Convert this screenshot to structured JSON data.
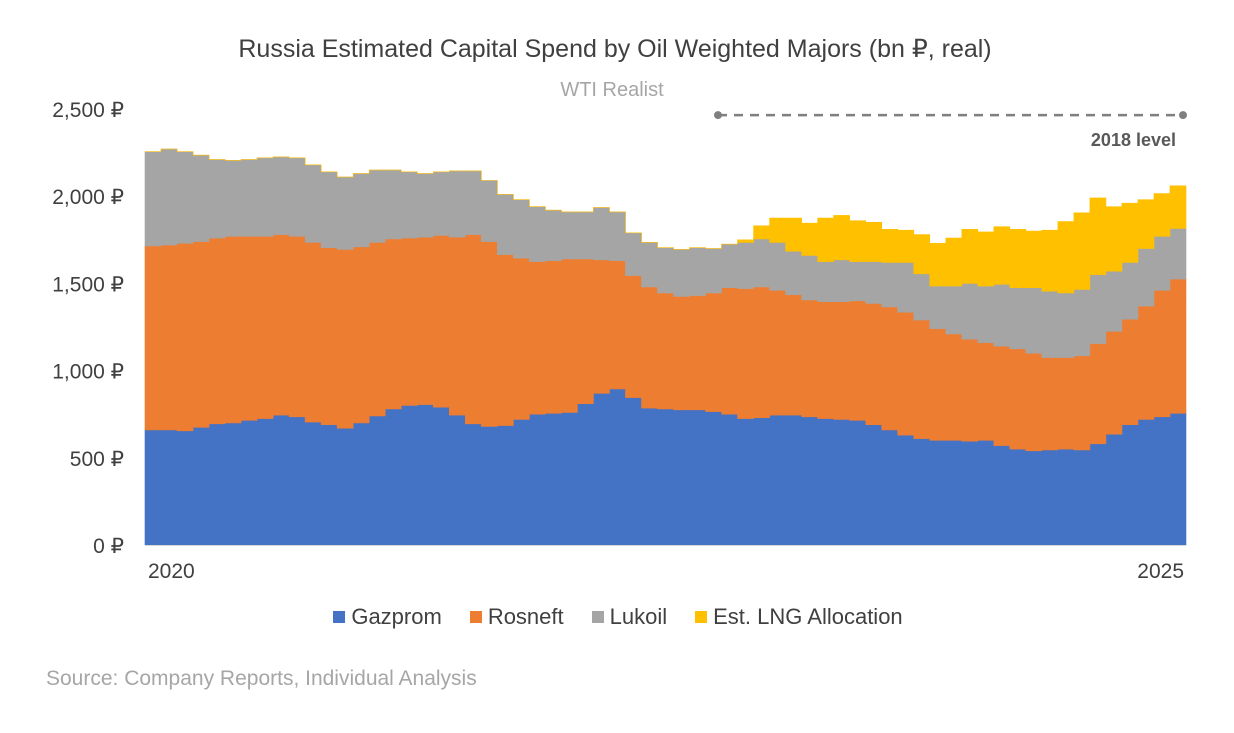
{
  "title": "Russia Estimated Capital Spend by Oil Weighted Majors (bn ₽, real)",
  "subtitle": "WTI Realist",
  "source": "Source: Company Reports, Individual Analysis",
  "colors": {
    "gazprom": "#4472c4",
    "rosneft": "#ed7d31",
    "lukoil": "#a5a5a5",
    "lng": "#ffc000",
    "text": "#404040",
    "reference": "#7f7f7f"
  },
  "chart_data": {
    "type": "area",
    "stacked": true,
    "step": true,
    "x_tick_labels": [
      "2020",
      "2025"
    ],
    "ylim": [
      0,
      2500
    ],
    "y_ticks": [
      0,
      500,
      1000,
      1500,
      2000,
      2500
    ],
    "y_tick_labels": [
      "0 ₽",
      "500 ₽",
      "1,000 ₽",
      "1,500 ₽",
      "2,000 ₽",
      "2,500 ₽"
    ],
    "grid": false,
    "legend_position": "bottom",
    "series": [
      {
        "name": "Gazprom",
        "color": "#4472c4",
        "values": [
          660,
          660,
          655,
          675,
          695,
          700,
          715,
          725,
          745,
          735,
          705,
          690,
          670,
          700,
          740,
          780,
          800,
          805,
          790,
          745,
          695,
          680,
          685,
          720,
          750,
          755,
          760,
          810,
          870,
          895,
          845,
          785,
          780,
          775,
          775,
          765,
          750,
          725,
          730,
          745,
          745,
          735,
          725,
          720,
          715,
          690,
          660,
          630,
          610,
          600,
          600,
          595,
          600,
          570,
          550,
          540,
          545,
          550,
          545,
          580,
          635,
          690,
          720,
          735,
          755
        ]
      },
      {
        "name": "Rosneft",
        "color": "#ed7d31",
        "values": [
          1055,
          1060,
          1075,
          1065,
          1065,
          1070,
          1055,
          1045,
          1035,
          1035,
          1030,
          1015,
          1025,
          1010,
          995,
          975,
          960,
          960,
          985,
          1020,
          1085,
          1060,
          980,
          925,
          875,
          875,
          880,
          830,
          765,
          735,
          700,
          695,
          665,
          650,
          655,
          680,
          725,
          745,
          750,
          715,
          690,
          670,
          670,
          675,
          685,
          695,
          705,
          705,
          680,
          640,
          610,
          585,
          560,
          570,
          575,
          560,
          530,
          525,
          540,
          575,
          590,
          605,
          650,
          725,
          770
        ]
      },
      {
        "name": "Lukoil",
        "color": "#a5a5a5",
        "values": [
          540,
          550,
          525,
          495,
          450,
          435,
          440,
          450,
          445,
          450,
          445,
          435,
          415,
          420,
          415,
          395,
          380,
          365,
          365,
          380,
          365,
          350,
          345,
          335,
          315,
          290,
          270,
          270,
          300,
          280,
          245,
          255,
          260,
          270,
          275,
          255,
          250,
          265,
          275,
          275,
          250,
          255,
          230,
          240,
          225,
          240,
          255,
          285,
          265,
          245,
          275,
          320,
          325,
          355,
          350,
          375,
          380,
          370,
          380,
          395,
          345,
          325,
          330,
          310,
          290
        ]
      },
      {
        "name": "Est. LNG Allocation",
        "color": "#ffc000",
        "values": [
          0,
          0,
          0,
          0,
          0,
          0,
          0,
          0,
          0,
          0,
          0,
          0,
          0,
          0,
          0,
          0,
          0,
          0,
          0,
          0,
          0,
          0,
          0,
          0,
          0,
          0,
          0,
          0,
          0,
          0,
          0,
          0,
          0,
          0,
          0,
          0,
          0,
          15,
          75,
          140,
          190,
          185,
          250,
          255,
          235,
          225,
          190,
          185,
          225,
          245,
          275,
          310,
          310,
          330,
          335,
          325,
          350,
          410,
          440,
          440,
          370,
          340,
          280,
          245,
          245
        ]
      }
    ],
    "reference_line": {
      "label": "2018 level",
      "value": 2465
    }
  }
}
